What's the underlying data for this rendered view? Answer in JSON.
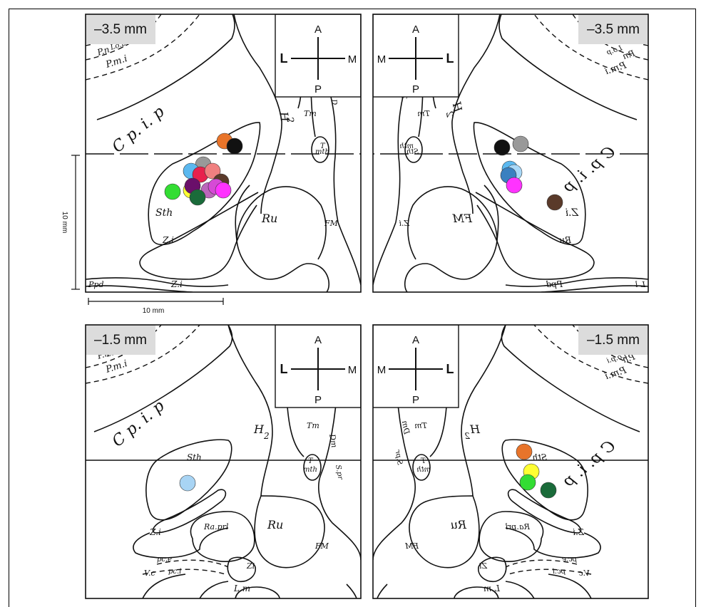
{
  "panels": [
    {
      "id": "top-left",
      "depth_label": "–3.5 mm",
      "compass": {
        "up": "A",
        "down": "P",
        "left": "L",
        "right": "M",
        "bold": "left"
      },
      "atlas_labels": [
        "P.n",
        "Lo.p",
        "P.m.i",
        "C p. i. p",
        "H",
        "2",
        "Tm",
        "D",
        "T",
        "mth",
        "Sth",
        "Z.i",
        "Ru",
        "FM",
        "Z.i",
        "Ppd",
        "L l"
      ],
      "electrode_colors": [
        "#e8742a",
        "#111111",
        "#999999",
        "#5bb8ef",
        "#e8214d",
        "#f08080",
        "#5a3a2a",
        "#ffff33",
        "#33dd33",
        "#6a0f6a",
        "#bb66bb",
        "#d64ad6",
        "#1a6b3a",
        "#ff33ff"
      ]
    },
    {
      "id": "top-right",
      "depth_label": "–3.5 mm",
      "compass": {
        "up": "A",
        "down": "P",
        "left": "M",
        "right": "L",
        "bold": "right"
      },
      "atlas_labels": [
        "P.n",
        "Lo.p",
        "P.m.i",
        "C p. i. p",
        "H",
        "2",
        "Tm",
        "T",
        "mth",
        "Sth",
        "Z.i",
        "Ru",
        "FM",
        "Z.i",
        "Ppd",
        "L l"
      ],
      "electrode_colors": [
        "#999999",
        "#111111",
        "#5bb8ef",
        "#a8d8f8",
        "#3a80c0",
        "#ff33ff",
        "#5a3a2a"
      ]
    },
    {
      "id": "bottom-left",
      "depth_label": "–1.5 mm",
      "compass": {
        "up": "A",
        "down": "P",
        "left": "L",
        "right": "M",
        "bold": "left"
      },
      "atlas_labels": [
        "P.n",
        "Lo.p.i",
        "P.m.i",
        "C p. i. p",
        "H",
        "2",
        "Tm",
        "Dm",
        "T",
        "mth",
        "S.pr",
        "Sth",
        "Z.i",
        "Ra.prl",
        "Ru",
        "FM",
        "Zi",
        "pc.e",
        "pc.i",
        "V.c",
        "L m"
      ],
      "electrode_colors": [
        "#a8d4f4"
      ]
    },
    {
      "id": "bottom-right",
      "depth_label": "–1.5 mm",
      "compass": {
        "up": "A",
        "down": "P",
        "left": "M",
        "right": "L",
        "bold": "right"
      },
      "atlas_labels": [
        "P.n",
        "Lo.p.i",
        "P.m.i",
        "C p. i. p",
        "H",
        "2",
        "Tm",
        "Dm",
        "T",
        "mth",
        "S.pr",
        "Sth",
        "Z.i",
        "Ra.prl",
        "Ru",
        "FM",
        "Zi",
        "pc.e",
        "pc.i",
        "V.c",
        "L m"
      ],
      "electrode_colors": [
        "#e8742a",
        "#ffff33",
        "#33dd33",
        "#1a6b3a"
      ]
    }
  ],
  "scale_bars": {
    "horizontal": "10 mm",
    "vertical": "10 mm"
  },
  "colors": {
    "line": "#111111",
    "depth_box": "#dcdcdc"
  }
}
